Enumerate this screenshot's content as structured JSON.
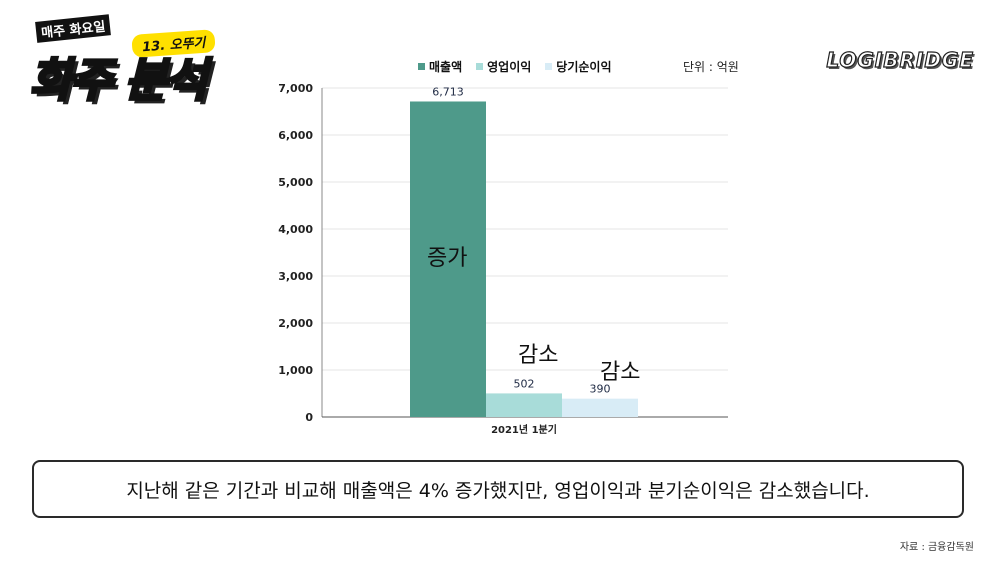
{
  "logo": {
    "top_text": "매주 화요일",
    "tag_text": "13. 오뚜기",
    "main_text": "화주 분석"
  },
  "brand": "LOGIBRIDGE",
  "unit_label": "단위 : 억원",
  "legend": [
    {
      "label": "매출액",
      "color": "#4e9a8a"
    },
    {
      "label": "영업이익",
      "color": "#a8dcd9"
    },
    {
      "label": "당기순이익",
      "color": "#d8ecf6"
    }
  ],
  "annotations": {
    "revenue": "증가",
    "operating": "감소",
    "net": "감소"
  },
  "summary": "지난해 같은 기간과 비교해 매출액은 4% 증가했지만, 영업이익과 분기순이익은 감소했습니다.",
  "source": "자료 : 금융감독원",
  "chart_data": {
    "type": "bar",
    "categories": [
      "2021년 1분기"
    ],
    "series": [
      {
        "name": "매출액",
        "values": [
          6713
        ],
        "labels": [
          "6,713"
        ],
        "color": "#4e9a8a"
      },
      {
        "name": "영업이익",
        "values": [
          502
        ],
        "labels": [
          "502"
        ],
        "color": "#a8dcd9"
      },
      {
        "name": "당기순이익",
        "values": [
          390
        ],
        "labels": [
          "390"
        ],
        "color": "#d8ecf6"
      }
    ],
    "yticks": [
      0,
      1000,
      2000,
      3000,
      4000,
      5000,
      6000,
      7000
    ],
    "ytick_labels": [
      "0",
      "1,000",
      "2,000",
      "3,000",
      "4,000",
      "5,000",
      "6,000",
      "7,000"
    ],
    "ylim": [
      0,
      7000
    ],
    "grid": true,
    "legend_position": "top-center"
  }
}
